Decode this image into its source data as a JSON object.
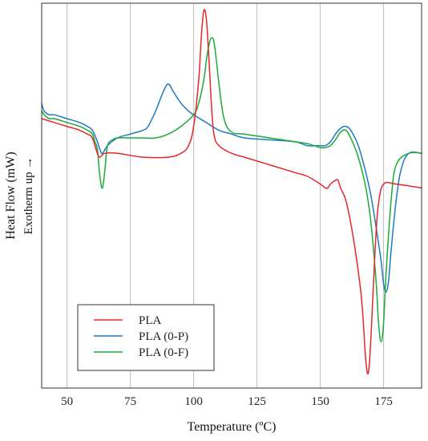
{
  "chart_data": {
    "type": "line",
    "title": "",
    "xlabel": "Temperature (ºC)",
    "ylabel": "Heat Flow (mW)",
    "ylabel_secondary": "Exotherm up →",
    "xlim": [
      40,
      190
    ],
    "ylim": [
      0,
      1
    ],
    "xticks": [
      50,
      75,
      100,
      125,
      150,
      175
    ],
    "grid": "vertical",
    "legend_position": "lower-left",
    "series": [
      {
        "name": "PLA",
        "color": "#e8262a",
        "x": [
          40,
          45,
          50,
          55,
          58,
          60,
          62,
          63,
          65,
          70,
          80,
          90,
          95,
          98,
          100,
          102,
          103,
          104,
          105,
          106,
          107,
          108,
          110,
          115,
          120,
          130,
          140,
          145,
          150,
          152,
          153,
          154,
          156,
          157,
          158,
          160,
          162,
          164,
          166,
          167,
          168,
          169,
          170,
          171,
          172,
          173,
          175,
          180,
          190
        ],
        "y": [
          0.7,
          0.69,
          0.68,
          0.67,
          0.66,
          0.65,
          0.61,
          0.6,
          0.61,
          0.61,
          0.6,
          0.6,
          0.61,
          0.63,
          0.68,
          0.8,
          0.91,
          0.98,
          0.96,
          0.86,
          0.74,
          0.66,
          0.63,
          0.61,
          0.6,
          0.58,
          0.56,
          0.55,
          0.53,
          0.52,
          0.52,
          0.53,
          0.54,
          0.54,
          0.52,
          0.49,
          0.43,
          0.35,
          0.25,
          0.17,
          0.07,
          0.04,
          0.13,
          0.27,
          0.4,
          0.48,
          0.53,
          0.53,
          0.52
        ]
      },
      {
        "name": "PLA (0-P)",
        "color": "#1f78c1",
        "x": [
          40,
          41,
          43,
          45,
          50,
          55,
          58,
          60,
          62,
          63,
          64,
          66,
          70,
          75,
          80,
          82,
          85,
          88,
          90,
          92,
          95,
          98,
          100,
          105,
          110,
          115,
          120,
          130,
          140,
          145,
          150,
          152,
          154,
          156,
          158,
          160,
          162,
          165,
          168,
          170,
          172,
          174,
          175,
          176,
          177,
          178,
          180,
          182,
          185,
          190
        ],
        "y": [
          0.74,
          0.72,
          0.71,
          0.71,
          0.7,
          0.69,
          0.68,
          0.67,
          0.64,
          0.62,
          0.61,
          0.63,
          0.65,
          0.66,
          0.67,
          0.68,
          0.72,
          0.77,
          0.79,
          0.77,
          0.74,
          0.72,
          0.71,
          0.69,
          0.67,
          0.66,
          0.65,
          0.645,
          0.64,
          0.63,
          0.63,
          0.63,
          0.64,
          0.66,
          0.675,
          0.68,
          0.67,
          0.63,
          0.56,
          0.5,
          0.42,
          0.33,
          0.27,
          0.25,
          0.28,
          0.36,
          0.49,
          0.57,
          0.61,
          0.61
        ]
      },
      {
        "name": "PLA (0-F)",
        "color": "#19ab3b",
        "x": [
          40,
          41,
          43,
          45,
          50,
          55,
          58,
          60,
          61,
          62,
          63,
          64,
          65,
          66,
          68,
          70,
          75,
          80,
          85,
          90,
          95,
          100,
          102,
          104,
          105,
          106,
          107,
          108,
          109,
          110,
          112,
          115,
          120,
          130,
          140,
          145,
          150,
          152,
          154,
          156,
          158,
          160,
          162,
          165,
          168,
          170,
          172,
          173,
          174,
          175,
          176,
          178,
          180,
          185,
          190
        ],
        "y": [
          0.72,
          0.71,
          0.7,
          0.7,
          0.69,
          0.68,
          0.67,
          0.66,
          0.64,
          0.62,
          0.55,
          0.52,
          0.57,
          0.63,
          0.645,
          0.65,
          0.65,
          0.65,
          0.65,
          0.66,
          0.68,
          0.71,
          0.74,
          0.8,
          0.85,
          0.89,
          0.91,
          0.9,
          0.85,
          0.79,
          0.7,
          0.665,
          0.66,
          0.65,
          0.64,
          0.635,
          0.625,
          0.625,
          0.63,
          0.645,
          0.665,
          0.67,
          0.65,
          0.6,
          0.52,
          0.43,
          0.28,
          0.17,
          0.12,
          0.17,
          0.3,
          0.49,
          0.58,
          0.61,
          0.61
        ]
      }
    ]
  }
}
